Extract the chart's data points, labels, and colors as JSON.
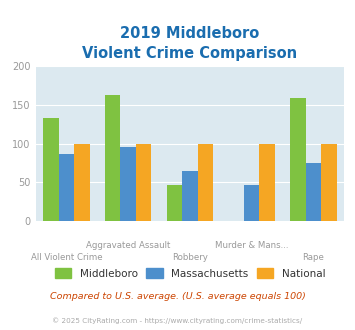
{
  "title_line1": "2019 Middleboro",
  "title_line2": "Violent Crime Comparison",
  "categories": [
    "All Violent Crime",
    "Aggravated Assault",
    "Robbery",
    "Murder & Mans...",
    "Rape"
  ],
  "line1_labels": [
    "",
    "Aggravated Assault",
    "",
    "Murder & Mans...",
    ""
  ],
  "line2_labels": [
    "All Violent Crime",
    "",
    "Robbery",
    "",
    "Rape"
  ],
  "middleboro": [
    133,
    162,
    46,
    0,
    159
  ],
  "massachusetts": [
    86,
    96,
    65,
    46,
    75
  ],
  "national": [
    100,
    100,
    100,
    100,
    100
  ],
  "colors": {
    "middleboro": "#7fc241",
    "massachusetts": "#4d8fcc",
    "national": "#f5a623"
  },
  "ylim": [
    0,
    200
  ],
  "yticks": [
    0,
    50,
    100,
    150,
    200
  ],
  "plot_background": "#dce9f0",
  "title_color": "#1a6daf",
  "axis_label_color": "#999999",
  "legend_label_color": "#333333",
  "footnote1": "Compared to U.S. average. (U.S. average equals 100)",
  "footnote2": "© 2025 CityRating.com - https://www.cityrating.com/crime-statistics/",
  "footnote1_color": "#cc4400",
  "footnote2_color": "#aaaaaa"
}
